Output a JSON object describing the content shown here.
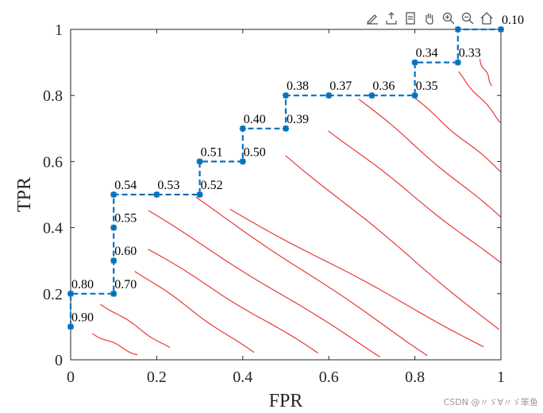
{
  "toolbar": {
    "icons": [
      "brush-icon",
      "export-icon",
      "datatip-icon",
      "pan-icon",
      "zoom-in-icon",
      "zoom-out-icon",
      "home-icon"
    ]
  },
  "watermark": "CSDN @〃ゞ∀〃ゞ笨鱼",
  "chart_data": {
    "type": "line",
    "xlabel": "FPR",
    "ylabel": "TPR",
    "xlim": [
      0,
      1
    ],
    "ylim": [
      0,
      1
    ],
    "xticks": [
      "0",
      "0.2",
      "0.4",
      "0.6",
      "0.8",
      "1"
    ],
    "yticks": [
      "0",
      "0.2",
      "0.4",
      "0.6",
      "0.8",
      "1"
    ],
    "grid": false,
    "series": [
      {
        "style": "dashed-step",
        "color": "#0072BD",
        "points": [
          {
            "x": 0,
            "y": 0.1,
            "label": "0.90"
          },
          {
            "x": 0,
            "y": 0.2,
            "label": "0.80"
          },
          {
            "x": 0.1,
            "y": 0.2,
            "label": "0.70"
          },
          {
            "x": 0.1,
            "y": 0.3,
            "label": "0.60"
          },
          {
            "x": 0.1,
            "y": 0.4,
            "label": "0.55"
          },
          {
            "x": 0.1,
            "y": 0.5,
            "label": "0.54"
          },
          {
            "x": 0.2,
            "y": 0.5,
            "label": "0.53"
          },
          {
            "x": 0.3,
            "y": 0.5,
            "label": "0.52"
          },
          {
            "x": 0.3,
            "y": 0.6,
            "label": "0.51"
          },
          {
            "x": 0.4,
            "y": 0.6,
            "label": "0.50"
          },
          {
            "x": 0.4,
            "y": 0.7,
            "label": "0.40"
          },
          {
            "x": 0.5,
            "y": 0.7,
            "label": "0.39"
          },
          {
            "x": 0.5,
            "y": 0.8,
            "label": "0.38"
          },
          {
            "x": 0.6,
            "y": 0.8,
            "label": "0.37"
          },
          {
            "x": 0.7,
            "y": 0.8,
            "label": "0.36"
          },
          {
            "x": 0.8,
            "y": 0.8,
            "label": "0.35"
          },
          {
            "x": 0.8,
            "y": 0.9,
            "label": "0.34"
          },
          {
            "x": 0.9,
            "y": 0.9,
            "label": "0.33"
          },
          {
            "x": 0.9,
            "y": 1.0,
            "label": ""
          },
          {
            "x": 1.0,
            "y": 1.0,
            "label": "0.10"
          }
        ]
      }
    ],
    "contour_lines": {
      "color": "#e8393a",
      "lines": [
        [
          [
            0.05,
            0.08
          ],
          [
            0.155,
            0.015
          ]
        ],
        [
          [
            0.07,
            0.17
          ],
          [
            0.23,
            0.035
          ]
        ],
        [
          [
            0.15,
            0.27
          ],
          [
            0.425,
            0.02
          ]
        ],
        [
          [
            0.18,
            0.335
          ],
          [
            0.575,
            0.02
          ]
        ],
        [
          [
            0.18,
            0.45
          ],
          [
            0.72,
            0.01
          ]
        ],
        [
          [
            0.29,
            0.49
          ],
          [
            0.83,
            0.015
          ]
        ],
        [
          [
            0.37,
            0.455
          ],
          [
            0.96,
            0.04
          ]
        ],
        [
          [
            0.5,
            0.62
          ],
          [
            0.995,
            0.09
          ]
        ],
        [
          [
            0.6,
            0.695
          ],
          [
            1.0,
            0.29
          ]
        ],
        [
          [
            0.67,
            0.79
          ],
          [
            1.0,
            0.43
          ]
        ],
        [
          [
            0.8,
            0.79
          ],
          [
            1.0,
            0.57
          ]
        ],
        [
          [
            0.9,
            0.87
          ],
          [
            1.0,
            0.72
          ]
        ],
        [
          [
            0.95,
            0.91
          ],
          [
            0.98,
            0.83
          ]
        ]
      ]
    }
  }
}
